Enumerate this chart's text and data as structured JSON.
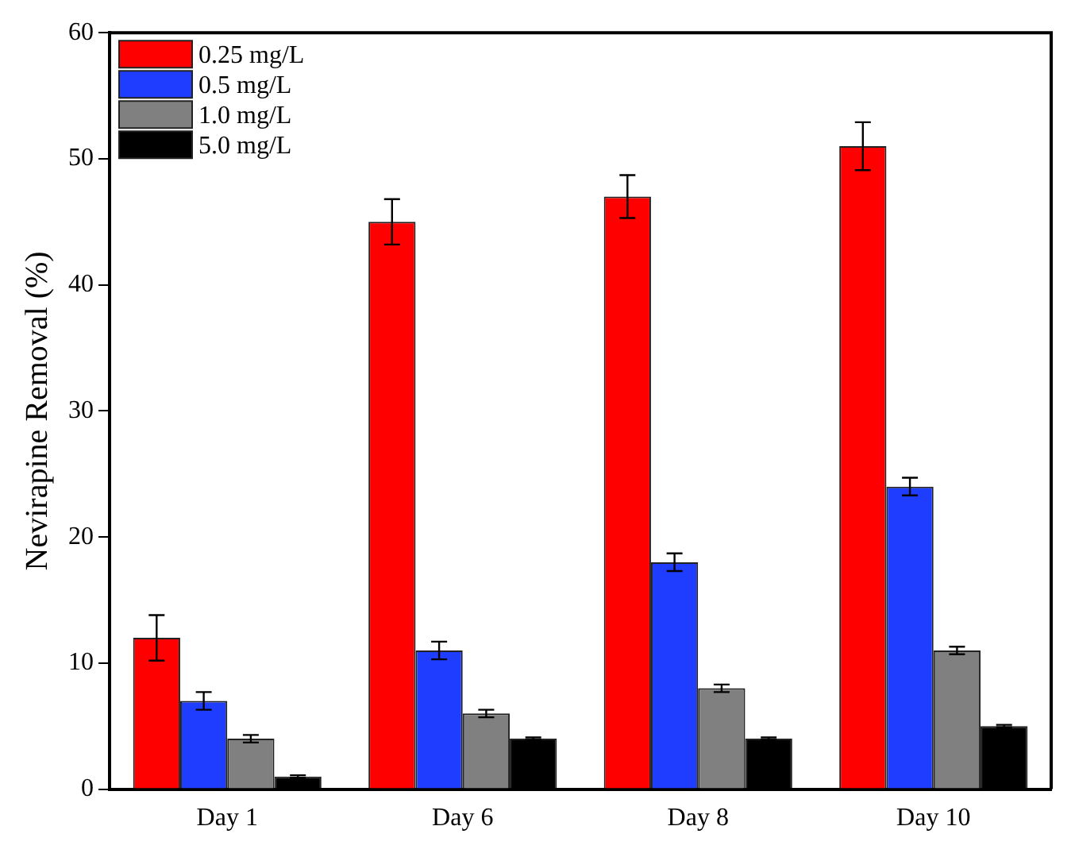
{
  "chart_data": {
    "type": "bar",
    "ylabel": "Nevirapine Removal (%)",
    "categories": [
      "Day 1",
      "Day 6",
      "Day 8",
      "Day 10"
    ],
    "series": [
      {
        "name": "0.25 mg/L",
        "color": "#ff0000",
        "values": [
          12,
          45,
          47,
          51
        ],
        "errors": [
          1.8,
          1.8,
          1.7,
          1.9
        ]
      },
      {
        "name": "0.5 mg/L",
        "color": "#1f3dff",
        "values": [
          7,
          11,
          18,
          24
        ],
        "errors": [
          0.7,
          0.7,
          0.7,
          0.7
        ]
      },
      {
        "name": "1.0 mg/L",
        "color": "#808080",
        "values": [
          4,
          6,
          8,
          11
        ],
        "errors": [
          0.3,
          0.3,
          0.3,
          0.3
        ]
      },
      {
        "name": "5.0 mg/L",
        "color": "#000000",
        "values": [
          1,
          4,
          4,
          5
        ],
        "errors": [
          0.1,
          0.1,
          0.1,
          0.1
        ]
      }
    ],
    "ylim": [
      0,
      60
    ],
    "yticks": [
      0,
      10,
      20,
      30,
      40,
      50,
      60
    ],
    "grid": false,
    "legend": "top left"
  }
}
